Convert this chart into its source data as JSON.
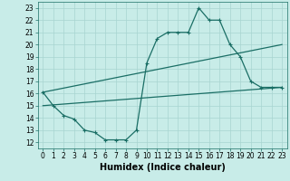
{
  "line1_x": [
    0,
    1,
    2,
    3,
    4,
    5,
    6,
    7,
    8,
    9,
    10,
    11,
    12,
    13,
    14,
    15,
    16,
    17,
    18,
    19,
    20,
    21,
    22,
    23
  ],
  "line1_y": [
    16.1,
    15.0,
    14.2,
    13.9,
    13.0,
    12.8,
    12.2,
    12.2,
    12.2,
    13.0,
    18.5,
    20.5,
    21.0,
    21.0,
    21.0,
    23.0,
    22.0,
    22.0,
    20.0,
    19.0,
    17.0,
    16.5,
    16.5,
    16.5
  ],
  "line2_x": [
    0,
    23
  ],
  "line2_y": [
    16.1,
    20.0
  ],
  "line3_x": [
    0,
    23
  ],
  "line3_y": [
    15.0,
    16.5
  ],
  "line_color": "#1a6e65",
  "bg_color": "#c8ece8",
  "grid_color": "#a8d4d0",
  "xlabel": "Humidex (Indice chaleur)",
  "xlim": [
    -0.5,
    23.5
  ],
  "ylim": [
    11.5,
    23.5
  ],
  "yticks": [
    12,
    13,
    14,
    15,
    16,
    17,
    18,
    19,
    20,
    21,
    22,
    23
  ],
  "xticks": [
    0,
    1,
    2,
    3,
    4,
    5,
    6,
    7,
    8,
    9,
    10,
    11,
    12,
    13,
    14,
    15,
    16,
    17,
    18,
    19,
    20,
    21,
    22,
    23
  ],
  "tick_fontsize": 5.5,
  "xlabel_fontsize": 7,
  "marker": "+"
}
